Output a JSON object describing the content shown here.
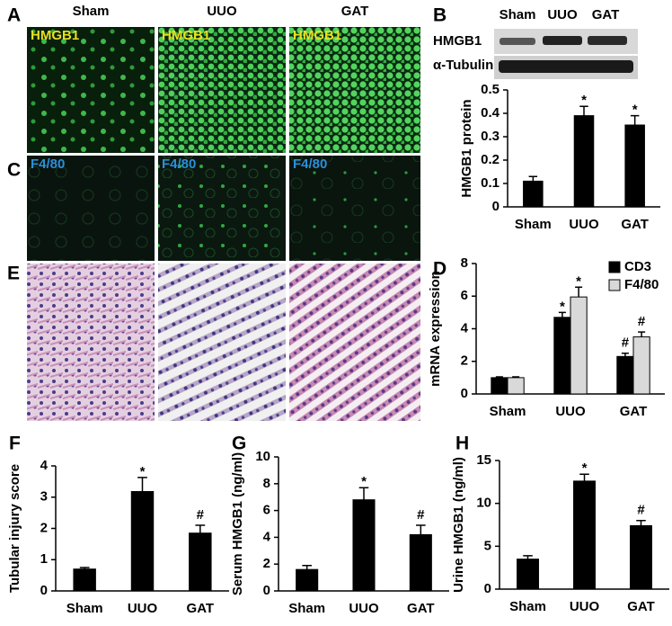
{
  "images": {
    "panel_labels": [
      "A",
      "C",
      "E"
    ],
    "columns": [
      "Sham",
      "UUO",
      "GAT"
    ],
    "stains": [
      "HMGB1",
      "F4/80"
    ]
  },
  "blot": {
    "panel": "B",
    "lanes": [
      "Sham",
      "UUO",
      "GAT"
    ],
    "rows": [
      "HMGB1",
      "α-Tubulin"
    ]
  },
  "chart_data": [
    {
      "type": "bar",
      "ylabel": "HMGB1 protein",
      "categories": [
        "Sham",
        "UUO",
        "GAT"
      ],
      "series": [
        {
          "color": "#000000",
          "values": [
            0.11,
            0.39,
            0.35
          ],
          "errors": [
            0.02,
            0.04,
            0.04
          ],
          "markers": [
            null,
            "*",
            "*"
          ]
        }
      ],
      "ylim": [
        0,
        0.5
      ],
      "yticks": [
        0,
        0.1,
        0.2,
        0.3,
        0.4,
        0.5
      ]
    },
    {
      "type": "bar",
      "panel": "D",
      "ylabel": "mRNA expression",
      "categories": [
        "Sham",
        "UUO",
        "GAT"
      ],
      "series": [
        {
          "name": "CD3",
          "color": "#000000",
          "values": [
            1,
            4.7,
            2.3
          ],
          "errors": [
            0.05,
            0.3,
            0.2
          ],
          "markers": [
            null,
            "*",
            "#"
          ]
        },
        {
          "name": "F4/80",
          "color": "#d9d9d9",
          "values": [
            1,
            5.95,
            3.5
          ],
          "errors": [
            0.05,
            0.6,
            0.3
          ],
          "markers": [
            null,
            "*",
            "#"
          ]
        }
      ],
      "ylim": [
        0,
        8
      ],
      "yticks": [
        0,
        2,
        4,
        6,
        8
      ],
      "legend": "top-right"
    },
    {
      "type": "bar",
      "panel": "F",
      "ylabel": "Tubular injury score",
      "categories": [
        "Sham",
        "UUO",
        "GAT"
      ],
      "series": [
        {
          "color": "#000000",
          "values": [
            0.7,
            3.18,
            1.85
          ],
          "errors": [
            0.05,
            0.45,
            0.25
          ],
          "markers": [
            null,
            "*",
            "#"
          ]
        }
      ],
      "ylim": [
        0,
        4
      ],
      "yticks": [
        0,
        1,
        2,
        3,
        4
      ]
    },
    {
      "type": "bar",
      "panel": "G",
      "ylabel": "Serum HMGB1 (ng/ml)",
      "categories": [
        "Sham",
        "UUO",
        "GAT"
      ],
      "series": [
        {
          "color": "#000000",
          "values": [
            1.6,
            6.8,
            4.2
          ],
          "errors": [
            0.3,
            0.9,
            0.7
          ],
          "markers": [
            null,
            "*",
            "#"
          ]
        }
      ],
      "ylim": [
        0,
        10
      ],
      "yticks": [
        0,
        2,
        4,
        6,
        8,
        10
      ]
    },
    {
      "type": "bar",
      "panel": "H",
      "ylabel": "Urine HMGB1 (ng/ml)",
      "categories": [
        "Sham",
        "UUO",
        "GAT"
      ],
      "series": [
        {
          "color": "#000000",
          "values": [
            3.5,
            12.6,
            7.4
          ],
          "errors": [
            0.4,
            0.8,
            0.6
          ],
          "markers": [
            null,
            "*",
            "#"
          ]
        }
      ],
      "ylim": [
        0,
        15
      ],
      "yticks": [
        0,
        5,
        10,
        15
      ]
    }
  ]
}
